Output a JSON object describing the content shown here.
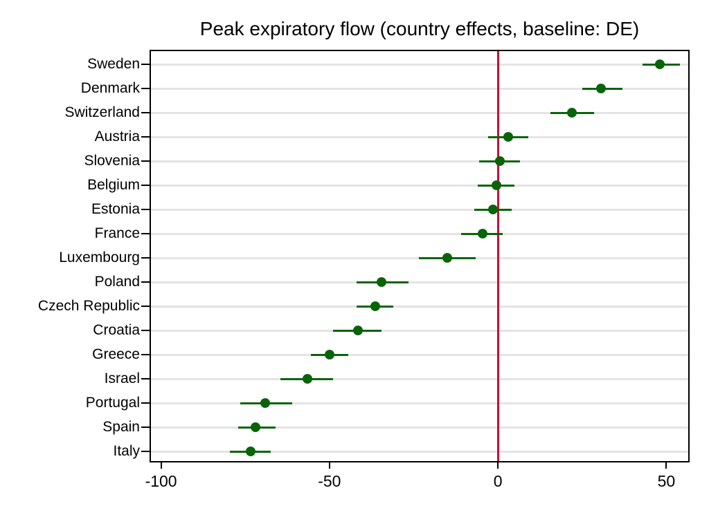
{
  "chart_data": {
    "type": "scatter",
    "subtype": "horizontal_dot_whisker_coefficient_plot",
    "title": "Peak expiratory flow (country effects, baseline: DE)",
    "xlabel": "",
    "ylabel": "",
    "xlim": [
      -103,
      56.5
    ],
    "x_ticks": [
      -100,
      -50,
      0,
      50
    ],
    "reference_line_x": 0,
    "grid": "horizontal-only",
    "legend": "none",
    "categories": [
      "Sweden",
      "Denmark",
      "Switzerland",
      "Austria",
      "Slovenia",
      "Belgium",
      "Estonia",
      "France",
      "Luxembourg",
      "Poland",
      "Czech Republic",
      "Croatia",
      "Greece",
      "Israel",
      "Portugal",
      "Spain",
      "Italy"
    ],
    "points": [
      {
        "name": "Sweden",
        "estimate": 48,
        "ci_low": 43,
        "ci_high": 54
      },
      {
        "name": "Denmark",
        "estimate": 30.5,
        "ci_low": 25,
        "ci_high": 37
      },
      {
        "name": "Switzerland",
        "estimate": 22,
        "ci_low": 15.5,
        "ci_high": 28.5
      },
      {
        "name": "Austria",
        "estimate": 3,
        "ci_low": -3,
        "ci_high": 9
      },
      {
        "name": "Slovenia",
        "estimate": 0.5,
        "ci_low": -5.5,
        "ci_high": 6.5
      },
      {
        "name": "Belgium",
        "estimate": -0.5,
        "ci_low": -6,
        "ci_high": 5
      },
      {
        "name": "Estonia",
        "estimate": -1.5,
        "ci_low": -7,
        "ci_high": 4
      },
      {
        "name": "France",
        "estimate": -4.5,
        "ci_low": -11,
        "ci_high": 1.5
      },
      {
        "name": "Luxembourg",
        "estimate": -15,
        "ci_low": -23.5,
        "ci_high": -6.5
      },
      {
        "name": "Poland",
        "estimate": -34.5,
        "ci_low": -42,
        "ci_high": -26.5
      },
      {
        "name": "Czech Republic",
        "estimate": -36.5,
        "ci_low": -42,
        "ci_high": -31
      },
      {
        "name": "Croatia",
        "estimate": -41.5,
        "ci_low": -49,
        "ci_high": -34.5
      },
      {
        "name": "Greece",
        "estimate": -50,
        "ci_low": -55.5,
        "ci_high": -44.5
      },
      {
        "name": "Israel",
        "estimate": -56.5,
        "ci_low": -64.5,
        "ci_high": -49
      },
      {
        "name": "Portugal",
        "estimate": -69,
        "ci_low": -76.5,
        "ci_high": -61
      },
      {
        "name": "Spain",
        "estimate": -72,
        "ci_low": -77,
        "ci_high": -66
      },
      {
        "name": "Italy",
        "estimate": -73.5,
        "ci_low": -79.5,
        "ci_high": -67.5
      }
    ],
    "colors": {
      "point": "#096409",
      "ci": "#096409",
      "reference_line": "#c11238",
      "grid": "#e4e4e4",
      "frame": "#000000",
      "text": "#000000",
      "background": "#ffffff"
    }
  }
}
